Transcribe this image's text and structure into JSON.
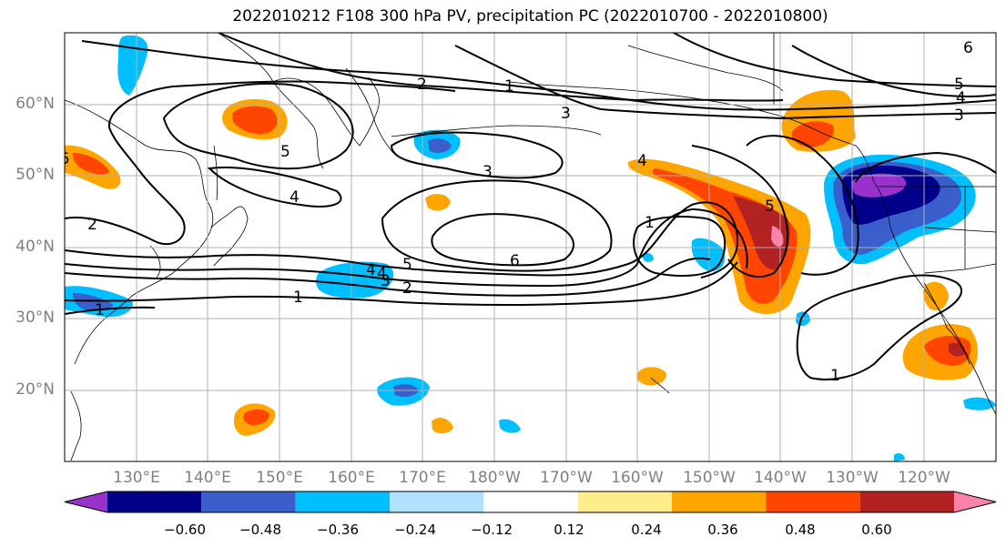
{
  "title": "2022010212 F108 300 hPa PV, precipitation PC (2022010700 - 2022010800)",
  "lat_labels": [
    "60°N",
    "50°N",
    "40°N",
    "30°N",
    "20°N"
  ],
  "lon_labels": [
    "130°E",
    "140°E",
    "150°E",
    "160°E",
    "170°E",
    "180°W",
    "170°W",
    "160°W",
    "150°W",
    "140°W",
    "130°W",
    "120°W"
  ],
  "colorbar": {
    "ticks": [
      "−0.60",
      "−0.48",
      "−0.36",
      "−0.24",
      "−0.12",
      "0.12",
      "0.24",
      "0.36",
      "0.48",
      "0.60"
    ],
    "colors": [
      "#9932CC",
      "#00008B",
      "#3A5FCD",
      "#00BFFF",
      "#B0E2FF",
      "#FFFFFF",
      "#FFEC8B",
      "#FFA500",
      "#FF4500",
      "#B22222",
      "#FF82AB"
    ]
  },
  "contour_labels": [
    "2",
    "1",
    "3",
    "5",
    "4",
    "3",
    "2",
    "4",
    "5",
    "6",
    "4",
    "3",
    "2",
    "1",
    "1",
    "1",
    "4",
    "5",
    "5",
    "4",
    "3",
    "1",
    "5",
    "6"
  ]
}
